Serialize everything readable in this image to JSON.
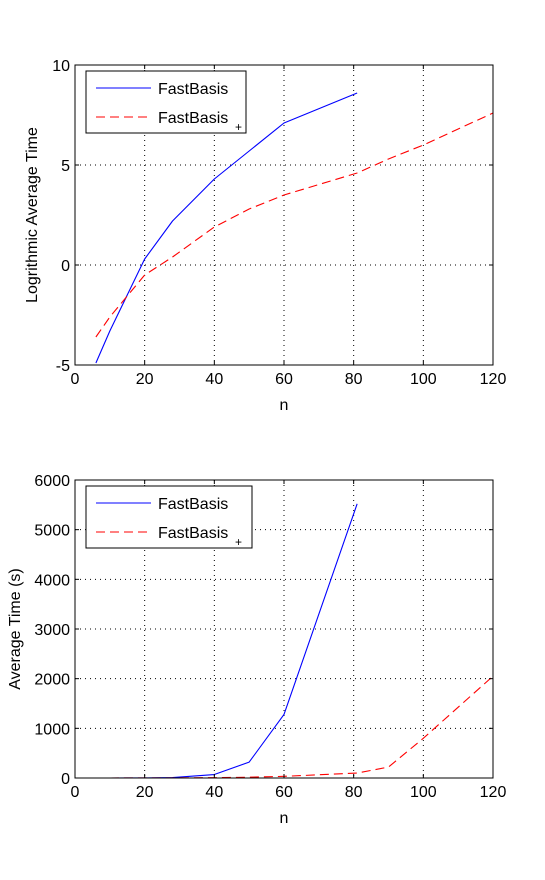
{
  "chart_data": [
    {
      "type": "line",
      "title": "",
      "xlabel": "n",
      "ylabel": "Logrithmic Average Time",
      "xlim": [
        0,
        120
      ],
      "ylim": [
        -5,
        10
      ],
      "xticks": [
        0,
        20,
        40,
        60,
        80,
        100,
        120
      ],
      "yticks": [
        -5,
        0,
        5,
        10
      ],
      "grid": true,
      "legend_position": "top-left",
      "series": [
        {
          "name": "FastBasis",
          "legend_suffix": "",
          "color": "#0000ff",
          "style": "solid",
          "x": [
            6,
            10,
            20,
            28,
            40,
            50,
            60,
            81
          ],
          "y": [
            -4.9,
            -3.3,
            0.3,
            2.2,
            4.3,
            5.7,
            7.1,
            8.6
          ]
        },
        {
          "name": "FastBasis",
          "legend_suffix": "+",
          "color": "#ff0000",
          "style": "dashed",
          "x": [
            6,
            10,
            20,
            28,
            40,
            50,
            60,
            81,
            90,
            100,
            120
          ],
          "y": [
            -3.6,
            -2.6,
            -0.5,
            0.4,
            1.9,
            2.8,
            3.5,
            4.6,
            5.3,
            6.0,
            7.6
          ]
        }
      ]
    },
    {
      "type": "line",
      "title": "",
      "xlabel": "n",
      "ylabel": "Average Time (s)",
      "xlim": [
        0,
        120
      ],
      "ylim": [
        0,
        6000
      ],
      "xticks": [
        0,
        20,
        40,
        60,
        80,
        100,
        120
      ],
      "yticks": [
        0,
        1000,
        2000,
        3000,
        4000,
        5000,
        6000
      ],
      "grid": true,
      "legend_position": "top-left",
      "series": [
        {
          "name": "FastBasis",
          "legend_suffix": "",
          "color": "#0000ff",
          "style": "solid",
          "x": [
            6,
            10,
            20,
            28,
            40,
            50,
            60,
            81
          ],
          "y": [
            0,
            0,
            2,
            9,
            70,
            320,
            1280,
            5520
          ]
        },
        {
          "name": "FastBasis",
          "legend_suffix": "+",
          "color": "#ff0000",
          "style": "dashed",
          "x": [
            6,
            10,
            20,
            28,
            40,
            50,
            60,
            81,
            90,
            100,
            120
          ],
          "y": [
            0,
            0,
            1,
            2,
            7,
            16,
            33,
            100,
            220,
            800,
            2050
          ]
        }
      ]
    }
  ]
}
